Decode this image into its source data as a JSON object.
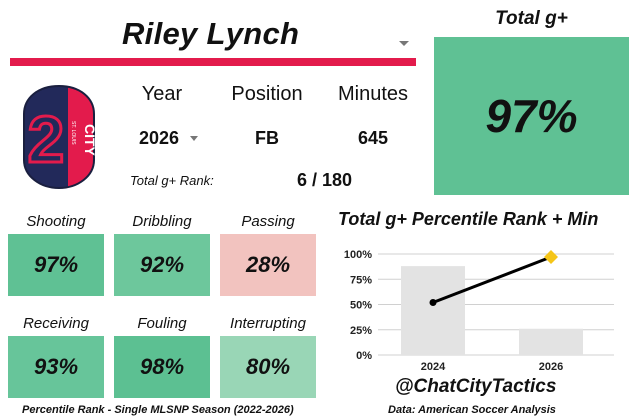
{
  "header": {
    "player_name": "Riley Lynch"
  },
  "logo": {
    "text": "CITY",
    "subtext": "ST. LOUIS",
    "numeral": "2"
  },
  "info": {
    "year_label": "Year",
    "position_label": "Position",
    "minutes_label": "Minutes",
    "year_value": "2026",
    "position_value": "FB",
    "minutes_value": "645",
    "rank_label": "Total g+ Rank:",
    "rank_value": "6 / 180"
  },
  "total": {
    "title": "Total g+",
    "value": "97%",
    "color": "#5fc194"
  },
  "metrics": [
    {
      "label": "Shooting",
      "value": "97%",
      "color": "#5fc194"
    },
    {
      "label": "Dribbling",
      "value": "92%",
      "color": "#6dc79c"
    },
    {
      "label": "Passing",
      "value": "28%",
      "color": "#f2c3bf"
    },
    {
      "label": "Receiving",
      "value": "93%",
      "color": "#67c59a"
    },
    {
      "label": "Fouling",
      "value": "98%",
      "color": "#5cc092"
    },
    {
      "label": "Interrupting",
      "value": "80%",
      "color": "#99d6b6"
    }
  ],
  "footnote": "Percentile Rank - Single MLSNP Season (2022-2026)",
  "chart_data": {
    "type": "bar+line",
    "title": "Total g+ Percentile Rank + Min",
    "categories": [
      "2024",
      "2026"
    ],
    "bars": [
      0.88,
      0.26
    ],
    "line": [
      0.52,
      0.97
    ],
    "y_ticks": [
      "0%",
      "25%",
      "50%",
      "75%",
      "100%"
    ],
    "ylim": [
      0,
      1
    ],
    "grid": true,
    "bar_color": "#e3e3e3",
    "line_color": "#000000",
    "highlight_color": "#f5c518"
  },
  "handle": "@ChatCityTactics",
  "source": "Data: American Soccer Analysis"
}
